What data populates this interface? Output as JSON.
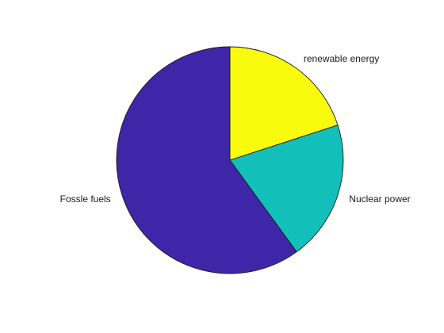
{
  "chart_data": {
    "type": "pie",
    "title": "",
    "start_angle_deg": 90,
    "direction": "clockwise",
    "legend": "none",
    "labels": [
      "renewable energy",
      "Nuclear power",
      "Fossle fuels"
    ],
    "values": [
      20,
      20,
      60
    ],
    "colors": [
      "#f9fb0e",
      "#13bfb9",
      "#3e26a8"
    ]
  }
}
